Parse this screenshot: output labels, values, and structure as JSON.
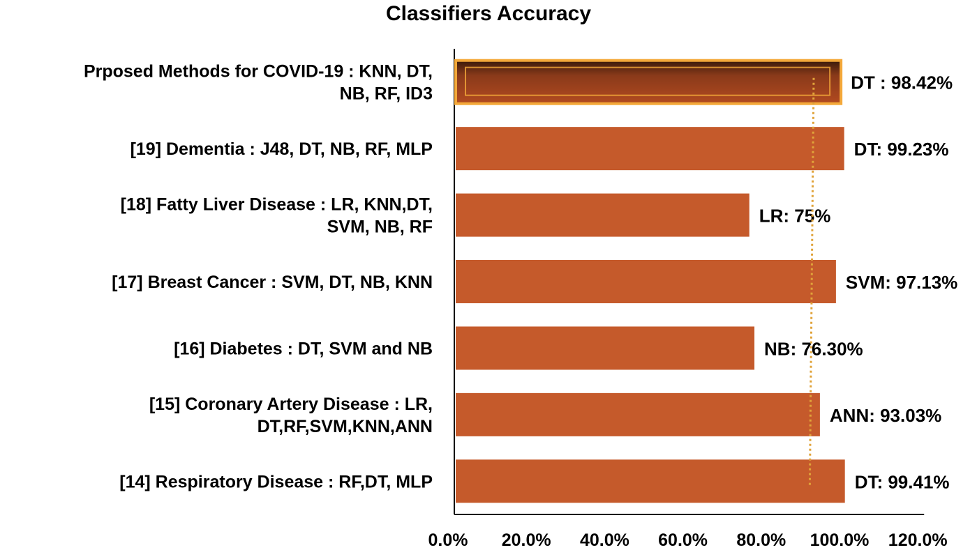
{
  "chart_data": {
    "type": "bar",
    "orientation": "horizontal",
    "title": "Classifiers Accuracy",
    "xlabel": "",
    "ylabel": "",
    "xlim": [
      0,
      120
    ],
    "xticks": [
      "0.0%",
      "20.0%",
      "40.0%",
      "60.0%",
      "80.0%",
      "100.0%",
      "120.0%"
    ],
    "grid": false,
    "legend": "none",
    "bar_color": "#C55A2B",
    "highlight_color": "#A5441F",
    "highlight_border": "#F4A93A",
    "annotation_line_color": "#E0A33A",
    "categories": [
      [
        "Prposed Methods for COVID-19 : KNN, DT,",
        "NB, RF, ID3"
      ],
      [
        "[19]  Dementia : J48, DT, NB, RF, MLP"
      ],
      [
        "[18]  Fatty Liver Disease : LR, KNN,DT,",
        "SVM, NB, RF"
      ],
      [
        "[17]  Breast Cancer : SVM, DT, NB, KNN"
      ],
      [
        "[16]  Diabetes : DT, SVM and NB"
      ],
      [
        "[15]  Coronary Artery Disease : LR,",
        "DT,RF,SVM,KNN,ANN"
      ],
      [
        "[14]  Respiratory Disease : RF,DT, MLP"
      ]
    ],
    "values": [
      98.42,
      99.23,
      75,
      97.13,
      76.3,
      93.03,
      99.41
    ],
    "data_labels": [
      "DT : 98.42%",
      "DT: 99.23%",
      "LR: 75%",
      "SVM: 97.13%",
      "NB: 76.30%",
      "ANN: 93.03%",
      "DT: 99.41%"
    ],
    "highlighted_index": 0
  }
}
